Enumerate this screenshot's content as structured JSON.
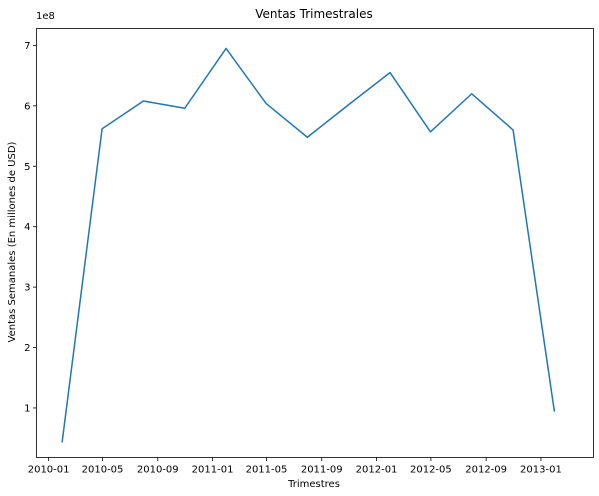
{
  "chart_data": {
    "type": "line",
    "title": "Ventas Trimestrales",
    "xlabel": "Trimestres",
    "ylabel": "Ventas Semanales (En millones de USD)",
    "y_offset_label": "1e8",
    "y_scale_factor": 100000000,
    "ylim": [
      0.18,
      7.28
    ],
    "y_ticks": [
      1,
      2,
      3,
      4,
      5,
      6,
      7
    ],
    "y_tick_labels": [
      "1",
      "2",
      "3",
      "4",
      "5",
      "6",
      "7"
    ],
    "xlim": [
      "2009-12-05",
      "2013-04-28"
    ],
    "x_ticks": [
      "2010-01-01",
      "2010-05-01",
      "2010-09-01",
      "2011-01-01",
      "2011-05-01",
      "2011-09-01",
      "2012-01-01",
      "2012-05-01",
      "2012-09-01",
      "2013-01-01"
    ],
    "x_tick_labels": [
      "2010-01",
      "2010-05",
      "2010-09",
      "2011-01",
      "2011-05",
      "2011-09",
      "2012-01",
      "2012-05",
      "2012-09",
      "2013-01"
    ],
    "grid": false,
    "series": [
      {
        "color": "#1f77b4",
        "points": [
          {
            "x": "2010-01-31",
            "y": 0.43
          },
          {
            "x": "2010-04-30",
            "y": 5.62
          },
          {
            "x": "2010-07-31",
            "y": 6.08
          },
          {
            "x": "2010-10-31",
            "y": 5.96
          },
          {
            "x": "2011-01-31",
            "y": 6.95
          },
          {
            "x": "2011-04-30",
            "y": 6.04
          },
          {
            "x": "2011-07-31",
            "y": 5.48
          },
          {
            "x": "2011-10-31",
            "y": 6.02
          },
          {
            "x": "2012-01-31",
            "y": 6.55
          },
          {
            "x": "2012-04-30",
            "y": 5.57
          },
          {
            "x": "2012-07-31",
            "y": 6.2
          },
          {
            "x": "2012-10-31",
            "y": 5.6
          },
          {
            "x": "2013-01-31",
            "y": 0.94
          }
        ]
      }
    ]
  }
}
